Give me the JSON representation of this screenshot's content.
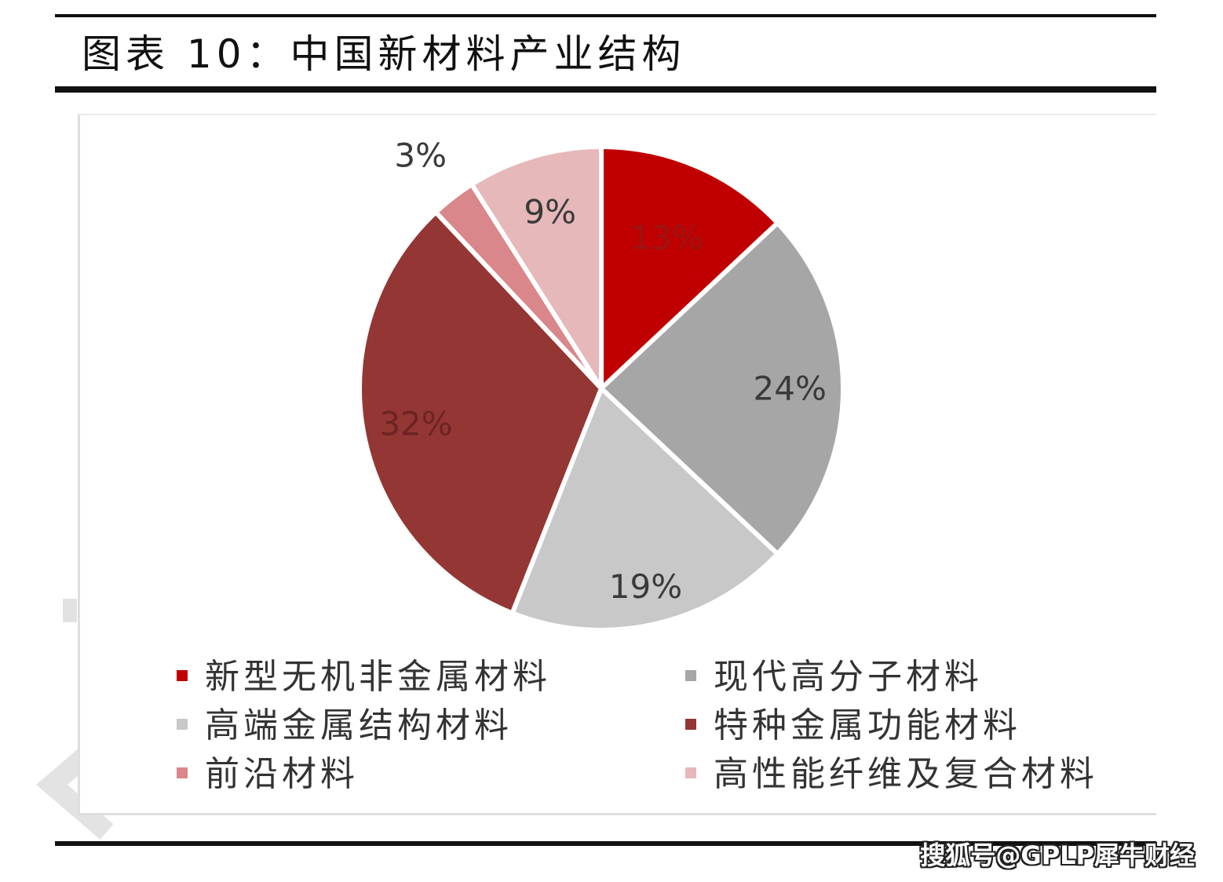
{
  "header": {
    "title": "图表 10：中国新材料产业结构"
  },
  "chart_data": {
    "type": "pie",
    "slices": [
      {
        "label": "新型无机非金属材料",
        "value": 13,
        "value_label": "13%",
        "color": "#c00000",
        "label_color": "#9a1515"
      },
      {
        "label": "现代高分子材料",
        "value": 24,
        "value_label": "24%",
        "color": "#a6a6a6",
        "label_color": "#3a3a3a"
      },
      {
        "label": "高端金属结构材料",
        "value": 19,
        "value_label": "19%",
        "color": "#c8c8c8",
        "label_color": "#3a3a3a"
      },
      {
        "label": "特种金属功能材料",
        "value": 32,
        "value_label": "32%",
        "color": "#943634",
        "label_color": "#6b2422"
      },
      {
        "label": "前沿材料",
        "value": 3,
        "value_label": "3%",
        "color": "#d9878a",
        "label_color": "#3a3a3a"
      },
      {
        "label": "高性能纤维及复合材料",
        "value": 9,
        "value_label": "9%",
        "color": "#e6b8b9",
        "label_color": "#3a3a3a"
      }
    ],
    "legend_position": "bottom"
  },
  "watermark": {
    "text": "搜狐号@GPLP犀牛财经"
  }
}
